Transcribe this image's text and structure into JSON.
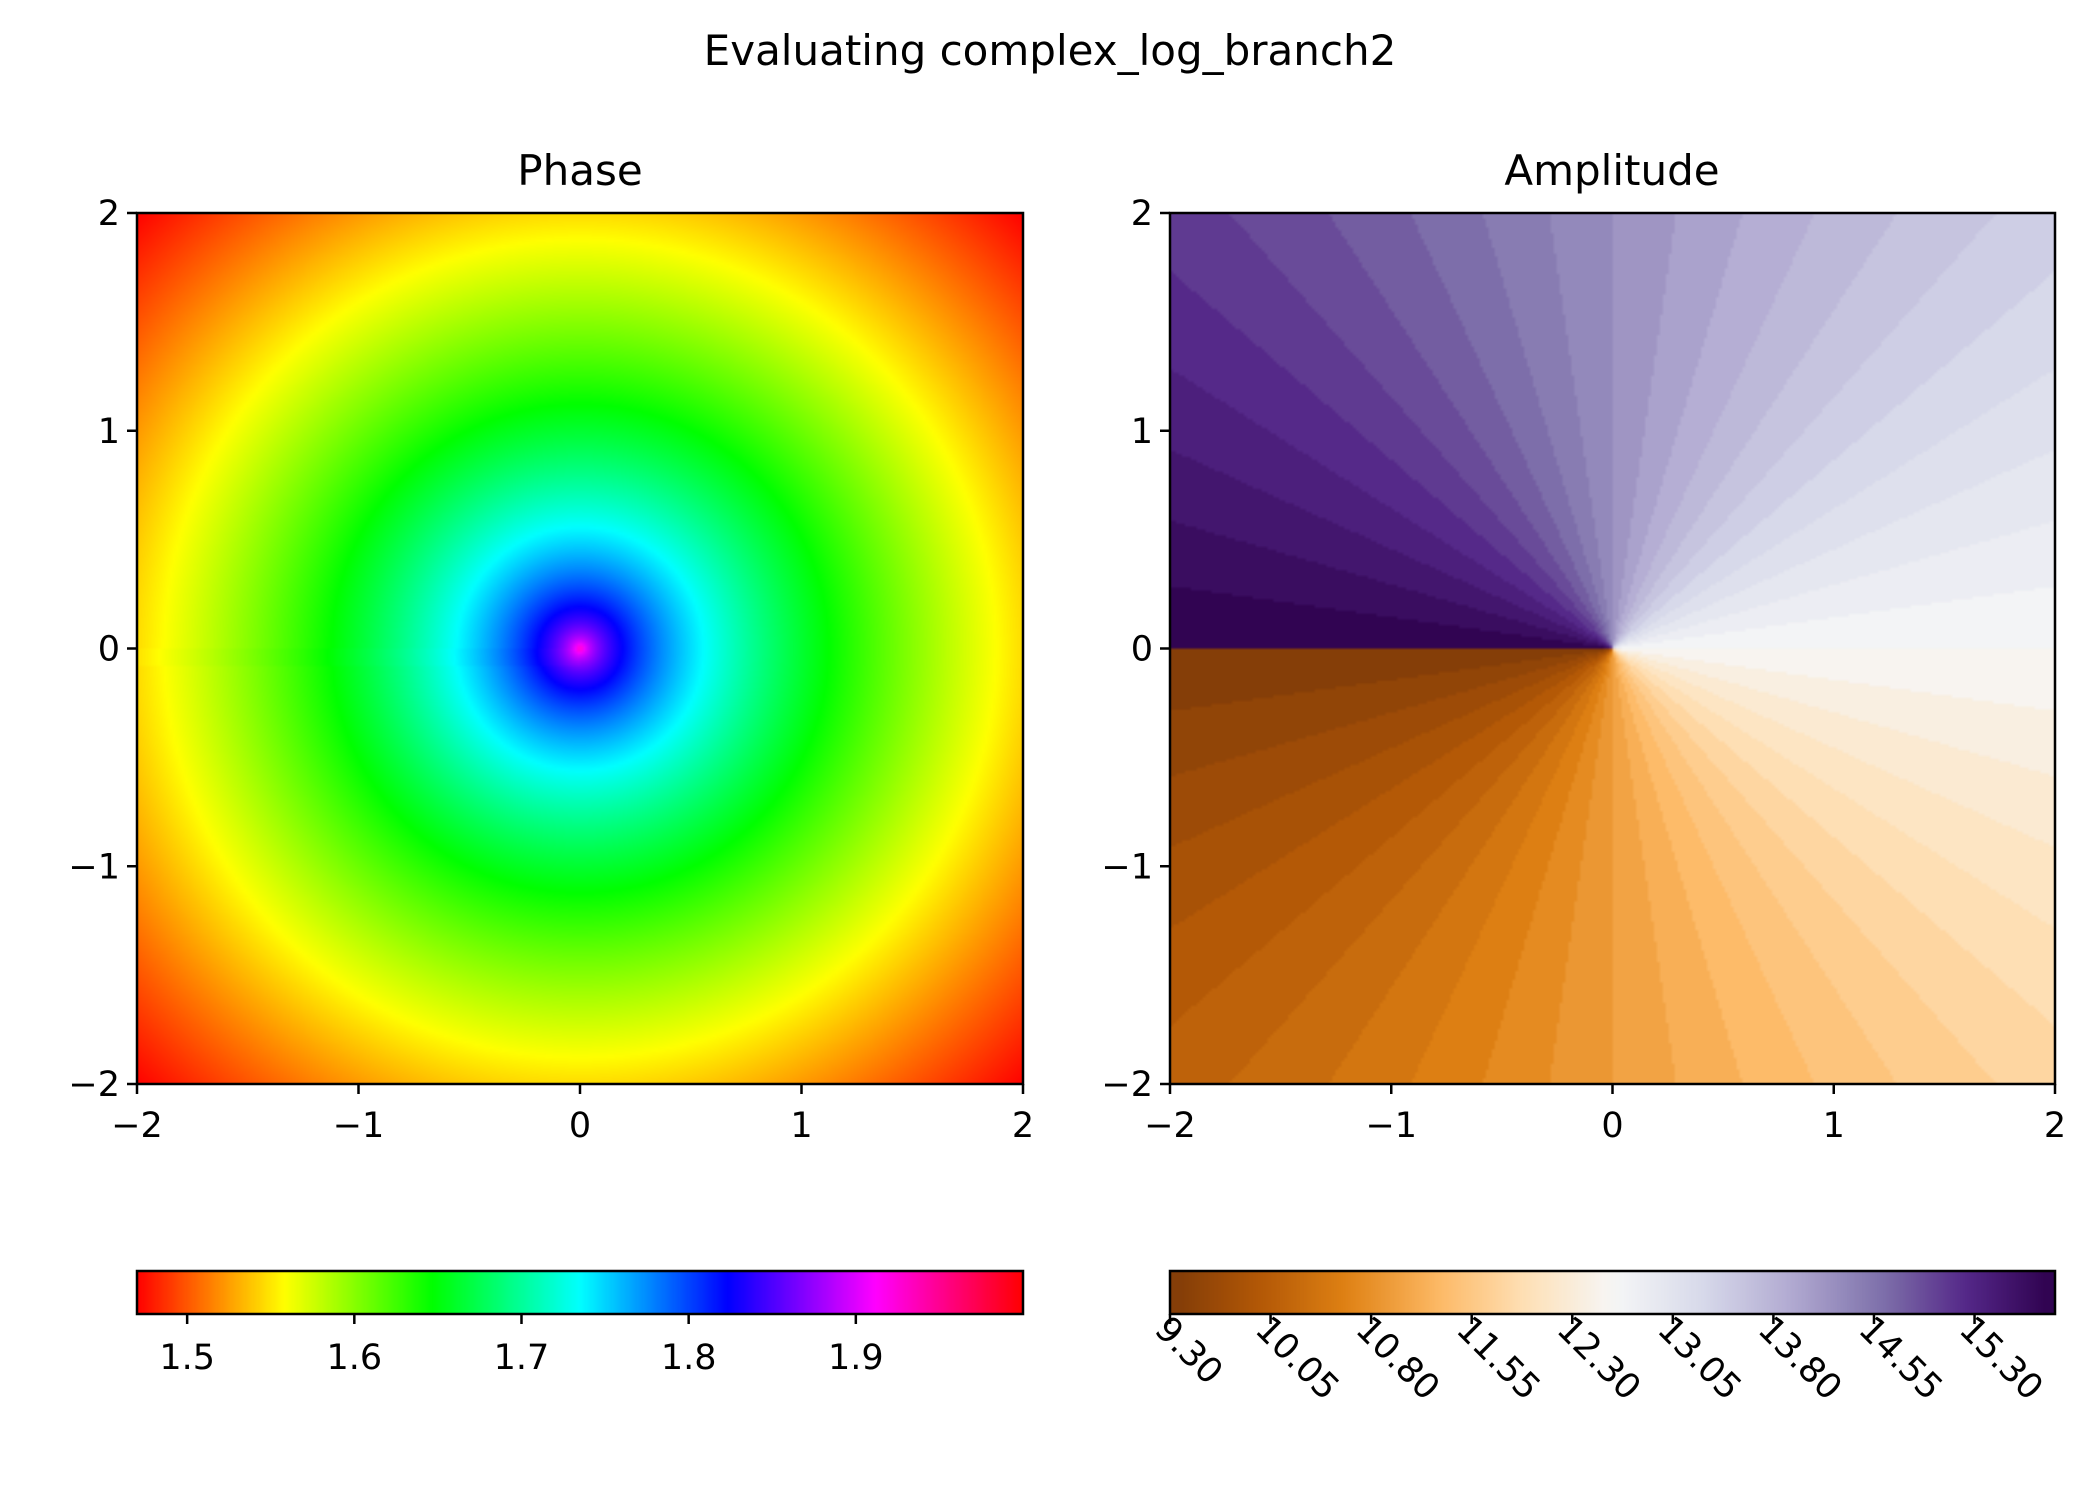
{
  "figure": {
    "suptitle": "Evaluating complex_log_branch2"
  },
  "chart_data": [
    {
      "type": "heatmap",
      "title": "Phase",
      "xlabel": "",
      "ylabel": "",
      "xlim": [
        -2,
        2
      ],
      "ylim": [
        -2,
        2
      ],
      "xticks": [
        -2,
        -1,
        0,
        1,
        2
      ],
      "yticks": [
        -2,
        -1,
        0,
        1,
        2
      ],
      "xtick_labels": [
        "−2",
        "−1",
        "0",
        "1",
        "2"
      ],
      "ytick_labels": [
        "−2",
        "−1",
        "0",
        "1",
        "2"
      ],
      "colormap": "hsv",
      "colorbar": {
        "orientation": "horizontal",
        "range": [
          1.47,
          2.0
        ],
        "ticks": [
          1.5,
          1.6,
          1.7,
          1.8,
          1.9
        ],
        "tick_labels": [
          "1.5",
          "1.6",
          "1.7",
          "1.8",
          "1.9"
        ]
      },
      "grid": false
    },
    {
      "type": "heatmap",
      "title": "Amplitude",
      "xlabel": "",
      "ylabel": "",
      "xlim": [
        -2,
        2
      ],
      "ylim": [
        -2,
        2
      ],
      "xticks": [
        -2,
        -1,
        0,
        1,
        2
      ],
      "yticks": [
        -2,
        -1,
        0,
        1,
        2
      ],
      "xtick_labels": [
        "−2",
        "−1",
        "0",
        "1",
        "2"
      ],
      "ytick_labels": [
        "−2",
        "−1",
        "0",
        "1",
        "2"
      ],
      "colormap": "PuOr",
      "levels": 44,
      "colorbar": {
        "orientation": "horizontal",
        "range": [
          9.3,
          15.9
        ],
        "ticks": [
          9.3,
          10.05,
          10.8,
          11.55,
          12.3,
          13.05,
          13.8,
          14.55,
          15.3
        ],
        "tick_labels": [
          "9.30",
          "10.05",
          "10.80",
          "11.55",
          "12.30",
          "13.05",
          "13.80",
          "14.55",
          "15.30"
        ],
        "tick_rotation": -45
      },
      "grid": false
    }
  ]
}
